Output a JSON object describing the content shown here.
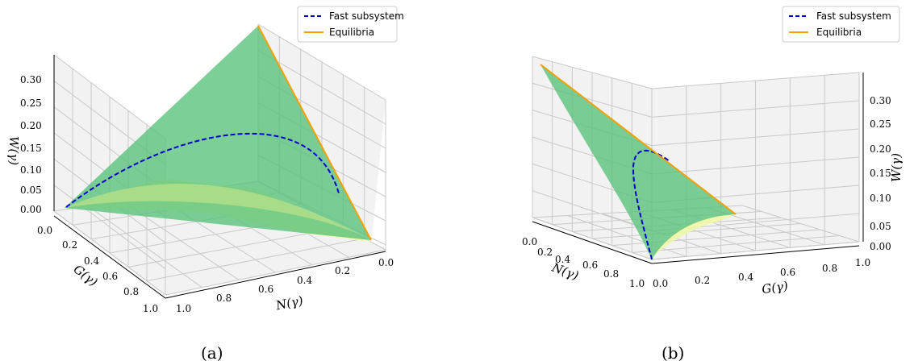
{
  "chart_data": [
    {
      "type": "surface3d",
      "panel": "(a)",
      "legend": {
        "placement": "top-right",
        "entries": [
          {
            "label": "Fast subsystem",
            "style": "dashed",
            "color": "#0000cc"
          },
          {
            "label": "Equilibria",
            "style": "solid",
            "color": "#f5a000"
          }
        ]
      },
      "xlabel": "N(γ)",
      "ylabel": "G(γ)",
      "zlabel": "W(γ)",
      "x_ticks": [
        "0.0",
        "0.2",
        "0.4",
        "0.6",
        "0.8",
        "1.0"
      ],
      "y_ticks": [
        "0.0",
        "0.2",
        "0.4",
        "0.6",
        "0.8",
        "1.0"
      ],
      "z_ticks": [
        "0.00",
        "0.05",
        "0.10",
        "0.15",
        "0.20",
        "0.25",
        "0.30"
      ],
      "xlim": [
        0,
        1
      ],
      "ylim": [
        0,
        1
      ],
      "zlim": [
        0,
        0.33
      ],
      "surface_color": "#57c27a",
      "base_color": "#f0f7a8",
      "fast_subsystem_curve": [
        [
          0,
          0,
          0
        ],
        [
          0.1,
          0.05,
          0.09
        ],
        [
          0.2,
          0.1,
          0.15
        ],
        [
          0.3,
          0.15,
          0.19
        ],
        [
          0.4,
          0.2,
          0.21
        ],
        [
          0.5,
          0.25,
          0.21
        ],
        [
          0.6,
          0.2,
          0.17
        ],
        [
          0.7,
          0.15,
          0.1
        ],
        [
          0.8,
          0.1,
          0.05
        ],
        [
          0.9,
          0.05,
          0.02
        ],
        [
          1,
          0,
          0
        ]
      ],
      "equilibria_line": [
        [
          0,
          0,
          0.33
        ],
        [
          1,
          0,
          0
        ]
      ]
    },
    {
      "type": "surface3d",
      "panel": "(b)",
      "legend": {
        "placement": "top-right",
        "entries": [
          {
            "label": "Fast subsystem",
            "style": "dashed",
            "color": "#0000cc"
          },
          {
            "label": "Equilibria",
            "style": "solid",
            "color": "#f5a000"
          }
        ]
      },
      "xlabel": "N(γ)",
      "ylabel": "G(γ)",
      "zlabel": "W(γ)",
      "x_ticks": [
        "0.0",
        "0.2",
        "0.4",
        "0.6",
        "0.8",
        "1.0"
      ],
      "y_ticks": [
        "0.0",
        "0.2",
        "0.4",
        "0.6",
        "0.8",
        "1.0"
      ],
      "z_ticks": [
        "0.00",
        "0.05",
        "0.10",
        "0.15",
        "0.20",
        "0.25",
        "0.30"
      ],
      "xlim": [
        0,
        1
      ],
      "ylim": [
        0,
        1
      ],
      "zlim": [
        0,
        0.33
      ],
      "surface_color": "#57c27a",
      "base_color": "#f0f7a8"
    }
  ],
  "captions": [
    "(a)",
    "(b)"
  ]
}
